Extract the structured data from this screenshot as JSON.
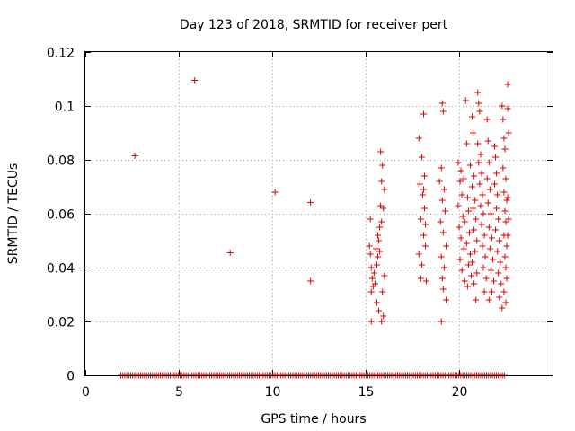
{
  "chart_data": {
    "type": "scatter",
    "title": "Day 123 of 2018, SRMTID for receiver pert",
    "xlabel": "GPS time / hours",
    "ylabel": "SRMTID / TECUs",
    "xlim": [
      0,
      25
    ],
    "ylim": [
      0,
      0.12
    ],
    "xticks": [
      0,
      5,
      10,
      15,
      20
    ],
    "xtick_labels": [
      "0",
      "5",
      "10",
      "15",
      "20"
    ],
    "yticks": [
      0,
      0.02,
      0.04,
      0.06,
      0.08,
      0.1,
      0.12
    ],
    "ytick_labels": [
      "0",
      "0.02",
      "0.04",
      "0.06",
      "0.08",
      "0.1",
      "0.12"
    ],
    "grid": true,
    "legend": "none",
    "marker": "plus",
    "series": [
      {
        "name": "SRMTID",
        "color": "#dd0000",
        "points": [
          [
            2.65,
            0.0815
          ],
          [
            5.85,
            0.1095
          ],
          [
            7.75,
            0.0455
          ],
          [
            10.15,
            0.068
          ],
          [
            12.05,
            0.0642
          ],
          [
            12.05,
            0.035
          ],
          [
            15.25,
            0.058
          ],
          [
            15.2,
            0.048
          ],
          [
            15.25,
            0.045
          ],
          [
            15.3,
            0.04
          ],
          [
            15.35,
            0.036
          ],
          [
            15.4,
            0.033
          ],
          [
            15.3,
            0.031
          ],
          [
            15.5,
            0.034
          ],
          [
            15.6,
            0.041
          ],
          [
            15.65,
            0.044
          ],
          [
            15.7,
            0.05
          ],
          [
            15.75,
            0.055
          ],
          [
            15.8,
            0.063
          ],
          [
            15.85,
            0.072
          ],
          [
            15.9,
            0.078
          ],
          [
            15.8,
            0.083
          ],
          [
            15.6,
            0.027
          ],
          [
            15.7,
            0.024
          ],
          [
            15.85,
            0.02
          ],
          [
            15.3,
            0.02
          ],
          [
            15.45,
            0.038
          ],
          [
            15.55,
            0.047
          ],
          [
            15.95,
            0.062
          ],
          [
            16.0,
            0.069
          ],
          [
            15.9,
            0.031
          ],
          [
            16.0,
            0.037
          ],
          [
            15.75,
            0.046
          ],
          [
            15.65,
            0.052
          ],
          [
            15.85,
            0.057
          ],
          [
            15.95,
            0.022
          ],
          [
            17.85,
            0.088
          ],
          [
            18.0,
            0.081
          ],
          [
            18.1,
            0.097
          ],
          [
            17.9,
            0.071
          ],
          [
            18.05,
            0.067
          ],
          [
            18.15,
            0.062
          ],
          [
            17.95,
            0.058
          ],
          [
            18.1,
            0.052
          ],
          [
            18.2,
            0.048
          ],
          [
            17.85,
            0.045
          ],
          [
            18.0,
            0.041
          ],
          [
            18.25,
            0.035
          ],
          [
            18.1,
            0.069
          ],
          [
            17.95,
            0.036
          ],
          [
            18.15,
            0.074
          ],
          [
            18.2,
            0.056
          ],
          [
            19.1,
            0.101
          ],
          [
            19.15,
            0.098
          ],
          [
            19.05,
            0.077
          ],
          [
            18.95,
            0.072
          ],
          [
            19.2,
            0.069
          ],
          [
            19.1,
            0.065
          ],
          [
            19.25,
            0.061
          ],
          [
            19.0,
            0.057
          ],
          [
            19.15,
            0.053
          ],
          [
            19.3,
            0.048
          ],
          [
            19.05,
            0.044
          ],
          [
            19.2,
            0.04
          ],
          [
            19.1,
            0.036
          ],
          [
            19.15,
            0.032
          ],
          [
            19.05,
            0.02
          ],
          [
            19.3,
            0.028
          ],
          [
            19.95,
            0.079
          ],
          [
            20.1,
            0.076
          ],
          [
            20.05,
            0.072
          ],
          [
            20.15,
            0.067
          ],
          [
            19.95,
            0.063
          ],
          [
            20.2,
            0.059
          ],
          [
            20.0,
            0.055
          ],
          [
            20.1,
            0.051
          ],
          [
            20.25,
            0.047
          ],
          [
            20.05,
            0.043
          ],
          [
            20.15,
            0.039
          ],
          [
            20.3,
            0.035
          ],
          [
            20.35,
            0.102
          ],
          [
            20.4,
            0.086
          ],
          [
            20.25,
            0.073
          ],
          [
            20.45,
            0.066
          ],
          [
            20.5,
            0.061
          ],
          [
            20.3,
            0.057
          ],
          [
            20.55,
            0.053
          ],
          [
            20.4,
            0.049
          ],
          [
            20.6,
            0.045
          ],
          [
            20.5,
            0.041
          ],
          [
            20.65,
            0.037
          ],
          [
            20.45,
            0.033
          ],
          [
            20.7,
            0.096
          ],
          [
            20.75,
            0.09
          ],
          [
            20.6,
            0.078
          ],
          [
            20.8,
            0.074
          ],
          [
            20.7,
            0.07
          ],
          [
            20.85,
            0.065
          ],
          [
            20.75,
            0.062
          ],
          [
            20.9,
            0.058
          ],
          [
            20.8,
            0.054
          ],
          [
            20.95,
            0.05
          ],
          [
            20.85,
            0.046
          ],
          [
            20.7,
            0.042
          ],
          [
            20.95,
            0.038
          ],
          [
            20.8,
            0.034
          ],
          [
            20.9,
            0.028
          ],
          [
            21.0,
            0.105
          ],
          [
            21.05,
            0.101
          ],
          [
            21.1,
            0.098
          ],
          [
            21.0,
            0.086
          ],
          [
            21.15,
            0.082
          ],
          [
            21.05,
            0.079
          ],
          [
            21.2,
            0.075
          ],
          [
            21.1,
            0.071
          ],
          [
            21.25,
            0.067
          ],
          [
            21.15,
            0.063
          ],
          [
            21.3,
            0.06
          ],
          [
            21.2,
            0.056
          ],
          [
            21.35,
            0.052
          ],
          [
            21.25,
            0.048
          ],
          [
            21.4,
            0.044
          ],
          [
            21.3,
            0.04
          ],
          [
            21.45,
            0.036
          ],
          [
            21.35,
            0.031
          ],
          [
            21.5,
            0.095
          ],
          [
            21.55,
            0.087
          ],
          [
            21.6,
            0.079
          ],
          [
            21.5,
            0.073
          ],
          [
            21.65,
            0.069
          ],
          [
            21.55,
            0.064
          ],
          [
            21.7,
            0.06
          ],
          [
            21.6,
            0.055
          ],
          [
            21.75,
            0.051
          ],
          [
            21.65,
            0.047
          ],
          [
            21.8,
            0.043
          ],
          [
            21.7,
            0.039
          ],
          [
            21.85,
            0.035
          ],
          [
            21.75,
            0.031
          ],
          [
            21.6,
            0.028
          ],
          [
            21.9,
            0.085
          ],
          [
            21.95,
            0.081
          ],
          [
            22.0,
            0.075
          ],
          [
            21.9,
            0.071
          ],
          [
            22.05,
            0.067
          ],
          [
            22.0,
            0.062
          ],
          [
            22.1,
            0.058
          ],
          [
            21.95,
            0.054
          ],
          [
            22.15,
            0.05
          ],
          [
            22.05,
            0.046
          ],
          [
            22.2,
            0.042
          ],
          [
            22.1,
            0.038
          ],
          [
            22.25,
            0.034
          ],
          [
            22.15,
            0.029
          ],
          [
            22.3,
            0.025
          ],
          [
            22.3,
            0.1
          ],
          [
            22.35,
            0.095
          ],
          [
            22.4,
            0.088
          ],
          [
            22.45,
            0.084
          ],
          [
            22.35,
            0.077
          ],
          [
            22.5,
            0.073
          ],
          [
            22.4,
            0.068
          ],
          [
            22.55,
            0.065
          ],
          [
            22.45,
            0.061
          ],
          [
            22.5,
            0.057
          ],
          [
            22.4,
            0.052
          ],
          [
            22.55,
            0.048
          ],
          [
            22.45,
            0.044
          ],
          [
            22.5,
            0.04
          ],
          [
            22.55,
            0.036
          ],
          [
            22.4,
            0.031
          ],
          [
            22.5,
            0.027
          ],
          [
            22.6,
            0.108
          ],
          [
            22.6,
            0.099
          ],
          [
            22.65,
            0.09
          ],
          [
            22.6,
            0.066
          ],
          [
            22.65,
            0.058
          ],
          [
            22.6,
            0.052
          ]
        ],
        "zero_band": {
          "y": 0,
          "x_start": 1.9,
          "x_end": 22.5
        }
      }
    ]
  }
}
